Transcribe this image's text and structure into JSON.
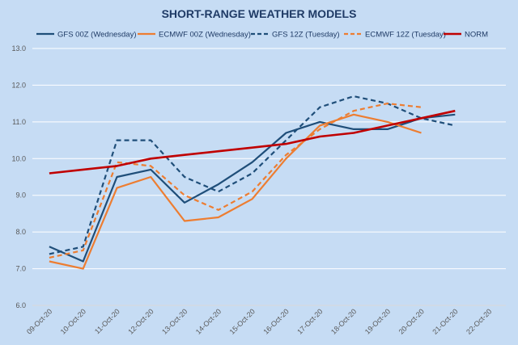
{
  "chart_data": {
    "type": "line",
    "title": "SHORT-RANGE WEATHER MODELS",
    "xlabel": "",
    "ylabel": "",
    "ylim": [
      6.0,
      13.0
    ],
    "yticks": [
      "13.0",
      "12.0",
      "11.0",
      "10.0",
      "9.0",
      "8.0",
      "7.0",
      "6.0"
    ],
    "categories": [
      "09-Oct-20",
      "10-Oct-20",
      "11-Oct-20",
      "12-Oct-20",
      "13-Oct-20",
      "14-Oct-20",
      "15-Oct-20",
      "16-Oct-20",
      "17-Oct-20",
      "18-Oct-20",
      "19-Oct-20",
      "20-Oct-20",
      "21-Oct-20",
      "22-Oct-20"
    ],
    "grid": true,
    "legend_position": "top",
    "series": [
      {
        "name": "GFS 00Z (Wednesday)",
        "color": "#1f4e79",
        "dash": "solid",
        "values": [
          7.6,
          7.2,
          9.5,
          9.7,
          8.8,
          9.3,
          9.9,
          10.7,
          11.0,
          10.8,
          10.8,
          11.1,
          11.2,
          null
        ]
      },
      {
        "name": "ECMWF 00Z (Wednesday)",
        "color": "#ed7d31",
        "dash": "solid",
        "values": [
          7.2,
          7.0,
          9.2,
          9.5,
          8.3,
          8.4,
          8.9,
          10.0,
          10.9,
          11.2,
          11.0,
          10.7,
          null,
          null
        ]
      },
      {
        "name": "GFS 12Z (Tuesday)",
        "color": "#1f4e79",
        "dash": "dashed",
        "values": [
          7.4,
          7.6,
          10.5,
          10.5,
          9.5,
          9.1,
          9.6,
          10.5,
          11.4,
          11.7,
          11.5,
          11.1,
          10.9,
          null
        ]
      },
      {
        "name": "ECMWF 12Z (Tuesday)",
        "color": "#ed7d31",
        "dash": "dashed",
        "values": [
          7.3,
          7.5,
          9.9,
          9.8,
          9.0,
          8.6,
          9.1,
          10.1,
          10.8,
          11.3,
          11.5,
          11.4,
          null,
          null
        ]
      },
      {
        "name": "NORM",
        "color": "#c00000",
        "dash": "solid",
        "values": [
          9.6,
          9.7,
          9.8,
          10.0,
          10.1,
          10.2,
          10.3,
          10.4,
          10.6,
          10.7,
          10.9,
          11.1,
          11.3,
          null
        ]
      }
    ]
  }
}
